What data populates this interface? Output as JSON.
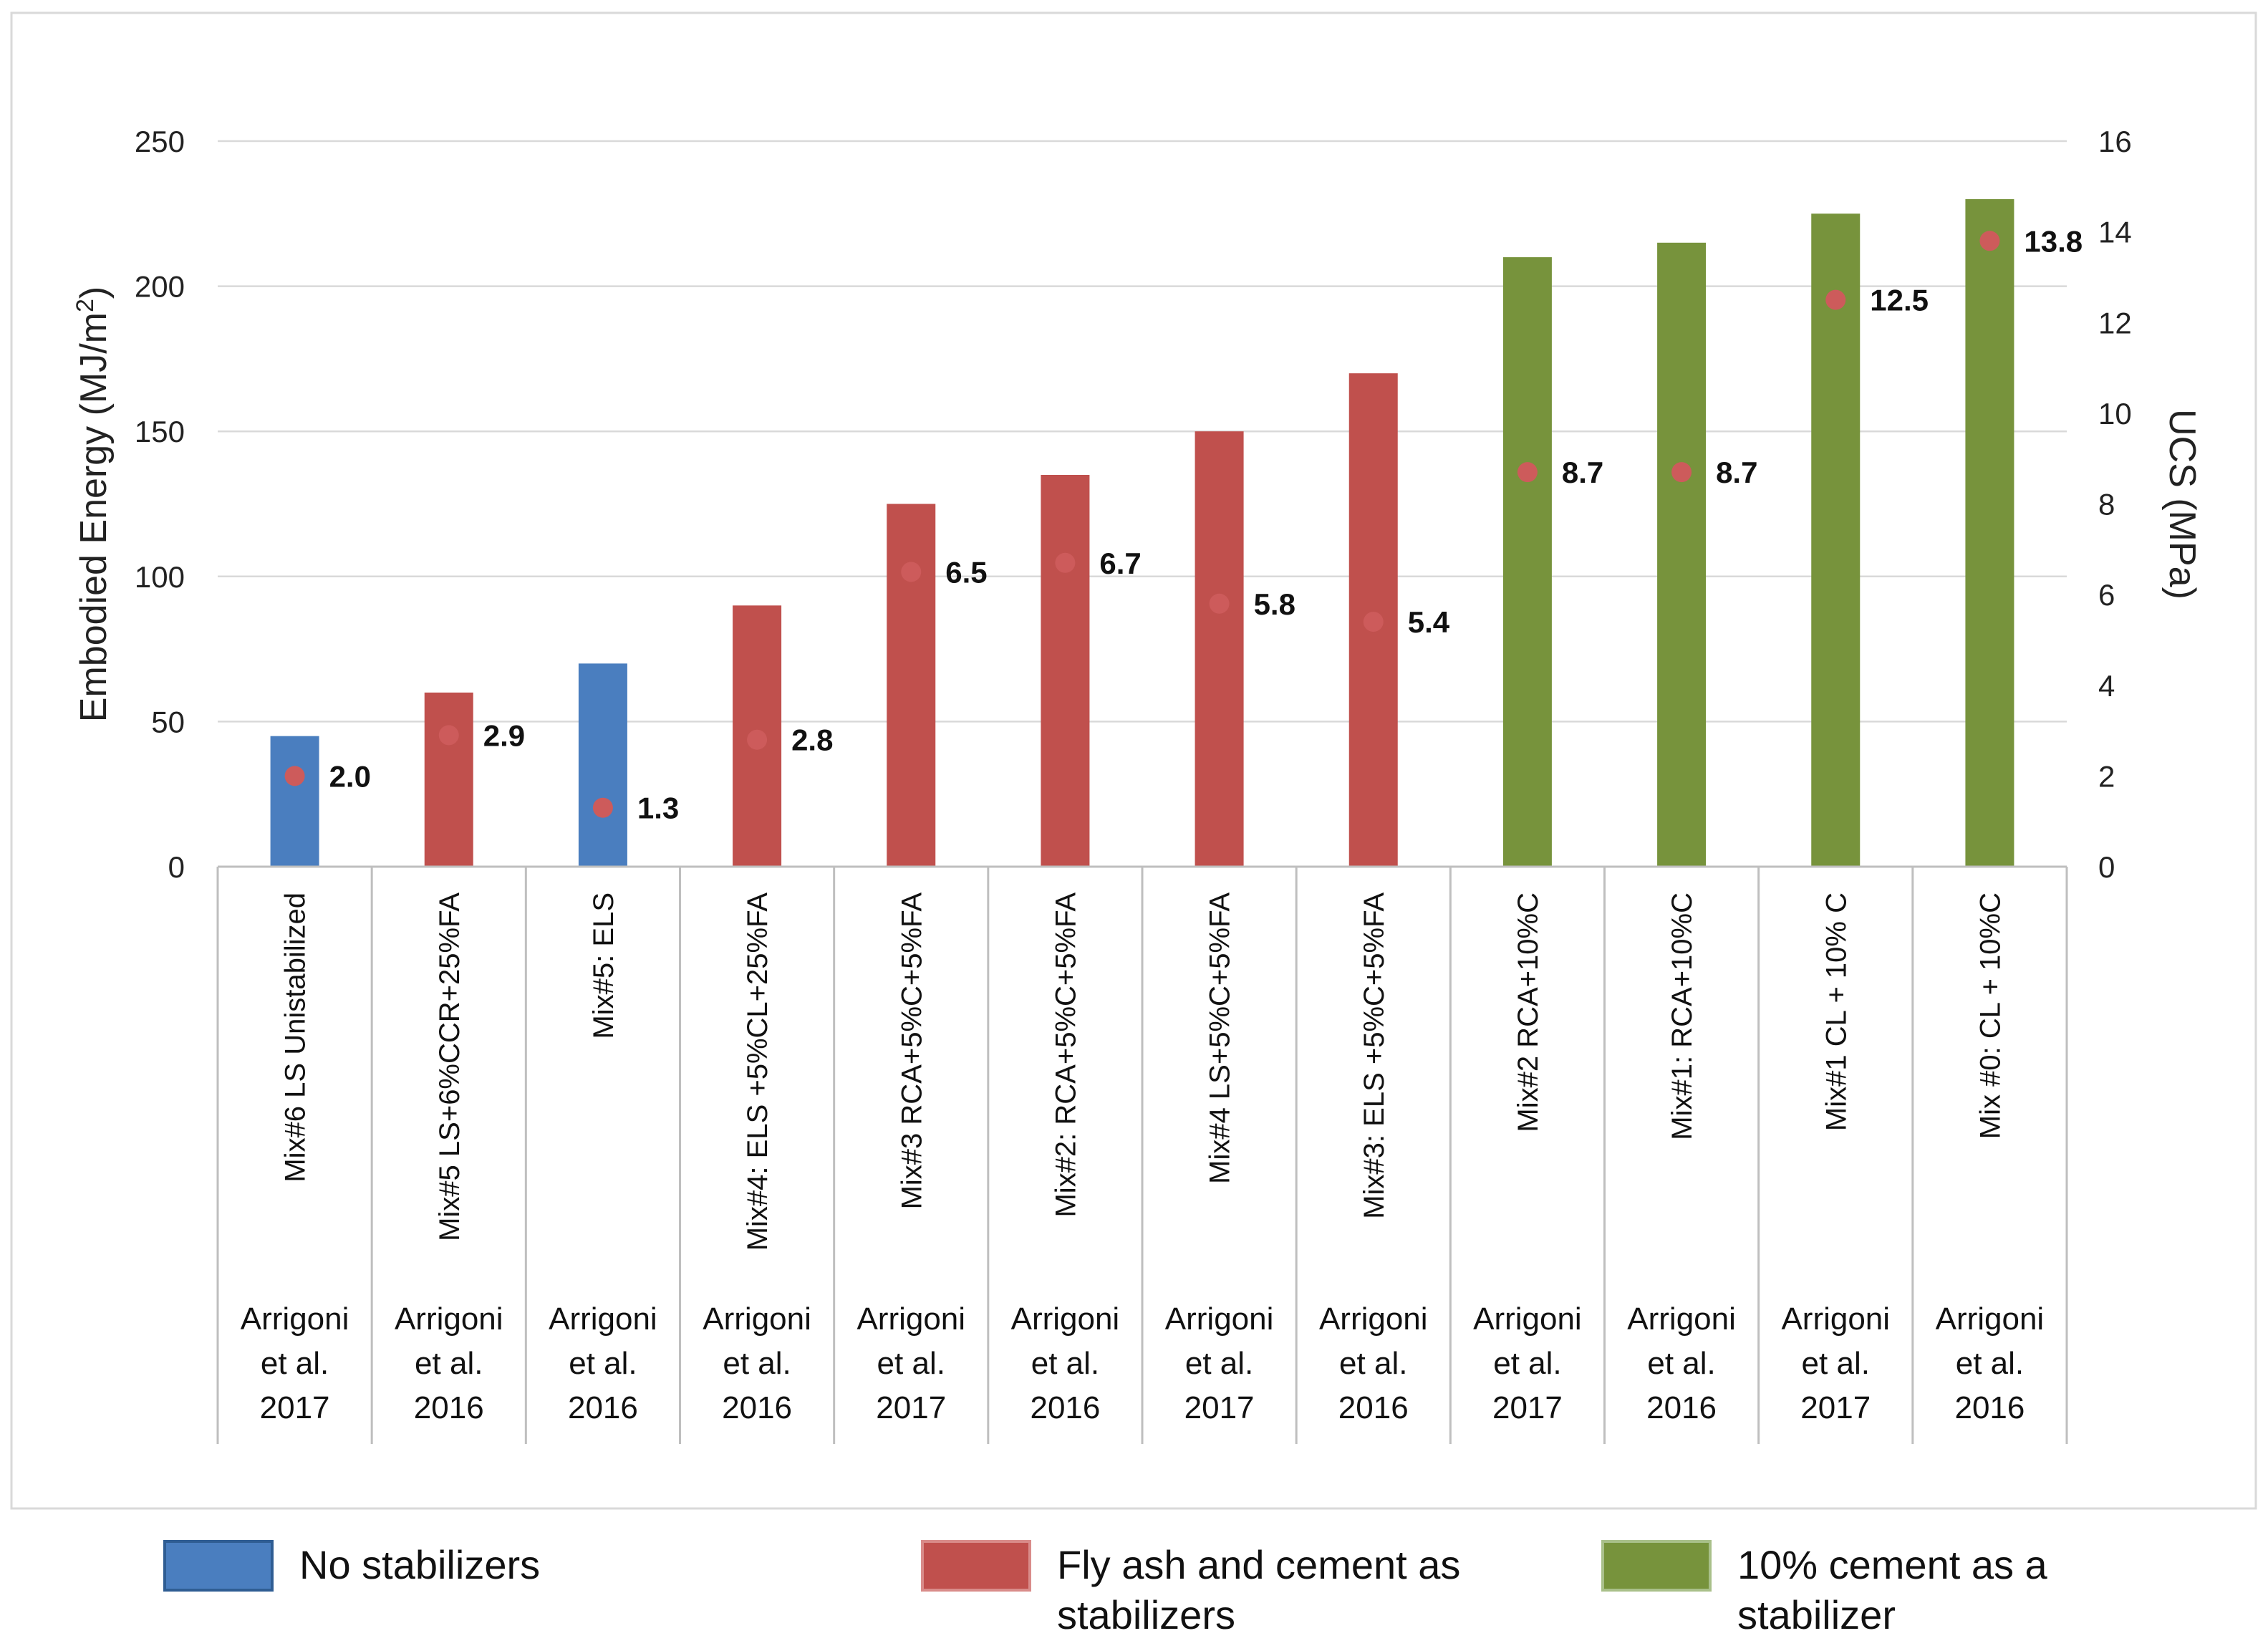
{
  "chart_data": {
    "type": "bar",
    "left_axis": {
      "title_main": "Embodied Energy (MJ/m",
      "title_sup": "2",
      "title_end": ")",
      "ylim": [
        0,
        250
      ],
      "ticks": [
        "0",
        "50",
        "100",
        "150",
        "200",
        "250"
      ]
    },
    "right_axis": {
      "title": "UCS (MPa)",
      "ylim": [
        0,
        16
      ],
      "ticks": [
        "0",
        "2",
        "4",
        "6",
        "8",
        "10",
        "12",
        "14",
        "16"
      ]
    },
    "colors": {
      "none": "#4a7ebf",
      "flyash": "#c0504d",
      "cement": "#77933c",
      "dot": "#cd5b5b"
    },
    "categories": [
      {
        "label": "Mix#6 LS Unistabilized",
        "source": [
          "Arrigoni",
          "et al.",
          "2017"
        ],
        "energy": 45,
        "ucs": 2.0,
        "ucs_label": "2.0",
        "group": "none"
      },
      {
        "label": "Mix#5 LS+6%CCR+25%FA",
        "source": [
          "Arrigoni",
          "et al.",
          "2016"
        ],
        "energy": 60,
        "ucs": 2.9,
        "ucs_label": "2.9",
        "group": "flyash"
      },
      {
        "label": "Mix#5: ELS",
        "source": [
          "Arrigoni",
          "et al.",
          "2016"
        ],
        "energy": 70,
        "ucs": 1.3,
        "ucs_label": "1.3",
        "group": "none"
      },
      {
        "label": "Mix#4: ELS +5%CL+25%FA",
        "source": [
          "Arrigoni",
          "et al.",
          "2016"
        ],
        "energy": 90,
        "ucs": 2.8,
        "ucs_label": "2.8",
        "group": "flyash"
      },
      {
        "label": "Mix#3 RCA+5%C+5%FA",
        "source": [
          "Arrigoni",
          "et al.",
          "2017"
        ],
        "energy": 125,
        "ucs": 6.5,
        "ucs_label": "6.5",
        "group": "flyash"
      },
      {
        "label": "Mix#2: RCA+5%C+5%FA",
        "source": [
          "Arrigoni",
          "et al.",
          "2016"
        ],
        "energy": 135,
        "ucs": 6.7,
        "ucs_label": "6.7",
        "group": "flyash"
      },
      {
        "label": "Mix#4 LS+5%C+5%FA",
        "source": [
          "Arrigoni",
          "et al.",
          "2017"
        ],
        "energy": 150,
        "ucs": 5.8,
        "ucs_label": "5.8",
        "group": "flyash"
      },
      {
        "label": "Mix#3: ELS +5%C+5%FA",
        "source": [
          "Arrigoni",
          "et al.",
          "2016"
        ],
        "energy": 170,
        "ucs": 5.4,
        "ucs_label": "5.4",
        "group": "flyash"
      },
      {
        "label": "Mix#2 RCA+10%C",
        "source": [
          "Arrigoni",
          "et al.",
          "2017"
        ],
        "energy": 210,
        "ucs": 8.7,
        "ucs_label": "8.7",
        "group": "cement"
      },
      {
        "label": "Mix#1: RCA+10%C",
        "source": [
          "Arrigoni",
          "et al.",
          "2016"
        ],
        "energy": 215,
        "ucs": 8.7,
        "ucs_label": "8.7",
        "group": "cement"
      },
      {
        "label": "Mix#1  CL + 10% C",
        "source": [
          "Arrigoni",
          "et al.",
          "2017"
        ],
        "energy": 225,
        "ucs": 12.5,
        "ucs_label": "12.5",
        "group": "cement"
      },
      {
        "label": "Mix #0: CL + 10%C",
        "source": [
          "Arrigoni",
          "et al.",
          "2016"
        ],
        "energy": 230,
        "ucs": 13.8,
        "ucs_label": "13.8",
        "group": "cement"
      }
    ],
    "legend": {
      "none": {
        "line1": "No stabilizers",
        "line2": ""
      },
      "flyash": {
        "line1": "Fly ash and cement as",
        "line2": "stabilizers"
      },
      "cement": {
        "line1": "10% cement as a",
        "line2": "stabilizer"
      }
    }
  }
}
